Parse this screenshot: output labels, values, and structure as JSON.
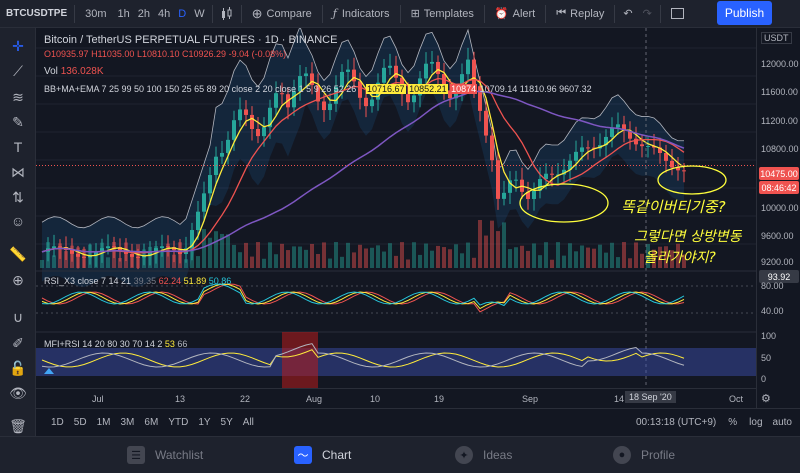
{
  "toolbar": {
    "symbol": "BTCUSDTPE",
    "timeframes": [
      "30m",
      "1h",
      "2h",
      "4h",
      "D",
      "W"
    ],
    "active_tf": "D",
    "compare": "Compare",
    "indicators": "Indicators",
    "templates": "Templates",
    "alert": "Alert",
    "replay": "Replay",
    "publish": "Publish"
  },
  "legend": {
    "title": "Bitcoin / TetherUS PERPETUAL FUTURES",
    "interval": "1D",
    "exchange": "BINANCE",
    "o": "O10935.97",
    "h": "H11035.00",
    "l": "L10810.10",
    "c": "C10926.29",
    "chg": "-9.04 (-0.08%)",
    "vol_label": "Vol",
    "vol": "136.028K",
    "study": "BB+MA+EMA 7 25 99 50 100 150 25 65 89 20 close 2 20 close 1 5 9 26 52 26",
    "study_vals": [
      "10716.67",
      "10852.21",
      "10874",
      "10709.14",
      "11810.96",
      "9607.32"
    ],
    "rsi": "RSI_X3 close 7 14 21",
    "rsi_vals": [
      "39.35",
      "62.24",
      "51.89",
      "50.86"
    ],
    "mfi": "MFI+RSI 14 20 80 30 70 14 2",
    "mfi_vals": [
      "53",
      "66"
    ]
  },
  "price_axis": {
    "currency": "USDT",
    "labels": [
      "12000.00",
      "11600.00",
      "11200.00",
      "10800.00",
      "10000.00",
      "9600.00",
      "9200.00"
    ],
    "last_price": "10475.00",
    "countdown": "08:46:42",
    "rsi_labels": [
      "93.92",
      "80.00",
      "40.00"
    ],
    "mfi_labels": [
      "100",
      "50",
      "0"
    ]
  },
  "time_axis": {
    "labels": [
      "Jul",
      "13",
      "22",
      "Aug",
      "10",
      "19",
      "Sep",
      "14",
      "Oct"
    ],
    "cursor": "18 Sep '20"
  },
  "bottom": {
    "ranges": [
      "1D",
      "5D",
      "1M",
      "3M",
      "6M",
      "YTD",
      "1Y",
      "5Y",
      "All"
    ],
    "clock": "00:13:18 (UTC+9)",
    "percent": "%",
    "log": "log",
    "auto": "auto"
  },
  "tabs": {
    "watchlist": "Watchlist",
    "chart": "Chart",
    "ideas": "Ideas",
    "profile": "Profile"
  },
  "annotation": {
    "line1": "똑같이버티기중?",
    "line2": "그렇다면 상방변동",
    "line3": "올라가야지?"
  },
  "colors": {
    "up": "#26a69a",
    "down": "#ef5350",
    "accent": "#2962ff",
    "annotation": "#ffff3c"
  }
}
